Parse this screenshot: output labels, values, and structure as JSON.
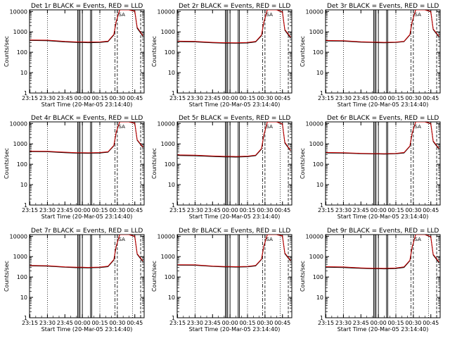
{
  "panel_title_suffix": "BLACK = Events, RED = LLD",
  "x_label": "Start Time (20-Mar-05 23:14:40)",
  "y_label": "Counts/sec",
  "x_tick_labels": [
    "23:15",
    "23:30",
    "23:45",
    "00:00",
    "00:15",
    "00:30",
    "00:45"
  ],
  "y_tick_labels": [
    "1",
    "10",
    "100",
    "1000",
    "10000"
  ],
  "saa_label": "SA",
  "colors": {
    "events": "#000000",
    "lld": "#cc0000",
    "axes": "#000000"
  },
  "chart_data": [
    {
      "type": "line",
      "title": "Det 1r",
      "scale_y": "log",
      "ylim": [
        1,
        12000
      ],
      "xlim": [
        "23:14:40",
        "00:53:00"
      ],
      "series": [
        {
          "name": "Events",
          "x": [
            "23:15",
            "23:30",
            "23:45",
            "23:55",
            "00:00",
            "00:05",
            "00:15",
            "00:22",
            "00:27",
            "00:29",
            "00:32",
            "00:40",
            "00:45",
            "00:47",
            "00:52"
          ],
          "values": [
            380,
            370,
            320,
            300,
            300,
            295,
            300,
            330,
            700,
            3000,
            12000,
            12000,
            10000,
            1500,
            600
          ]
        },
        {
          "name": "LLD",
          "x": [
            "23:15",
            "23:30",
            "23:45",
            "23:55",
            "00:00",
            "00:05",
            "00:15",
            "00:22",
            "00:27",
            "00:29",
            "00:32",
            "00:40",
            "00:45",
            "00:47",
            "00:52"
          ],
          "values": [
            400,
            390,
            340,
            320,
            320,
            315,
            320,
            350,
            750,
            3200,
            12000,
            12000,
            10500,
            1700,
            650
          ]
        }
      ]
    },
    {
      "type": "line",
      "title": "Det 2r",
      "scale_y": "log",
      "ylim": [
        1,
        12000
      ],
      "xlim": [
        "23:14:40",
        "00:53:00"
      ],
      "series": [
        {
          "name": "Events",
          "x": [
            "23:15",
            "23:30",
            "23:45",
            "23:55",
            "00:00",
            "00:05",
            "00:15",
            "00:22",
            "00:27",
            "00:29",
            "00:32",
            "00:40",
            "00:45",
            "00:47",
            "00:52"
          ],
          "values": [
            330,
            320,
            290,
            280,
            280,
            275,
            285,
            320,
            650,
            2800,
            12000,
            12000,
            9000,
            1200,
            500
          ]
        },
        {
          "name": "LLD",
          "x": [
            "23:15",
            "23:30",
            "23:45",
            "23:55",
            "00:00",
            "00:05",
            "00:15",
            "00:22",
            "00:27",
            "00:29",
            "00:32",
            "00:40",
            "00:45",
            "00:47",
            "00:52"
          ],
          "values": [
            350,
            340,
            305,
            295,
            295,
            290,
            300,
            340,
            700,
            3000,
            12000,
            12000,
            9500,
            1300,
            550
          ]
        }
      ]
    },
    {
      "type": "line",
      "title": "Det 3r",
      "scale_y": "log",
      "ylim": [
        1,
        12000
      ],
      "xlim": [
        "23:14:40",
        "00:53:00"
      ],
      "series": [
        {
          "name": "Events",
          "x": [
            "23:15",
            "23:30",
            "23:45",
            "23:55",
            "00:00",
            "00:05",
            "00:15",
            "00:22",
            "00:27",
            "00:29",
            "00:32",
            "00:40",
            "00:45",
            "00:47",
            "00:52"
          ],
          "values": [
            360,
            350,
            310,
            300,
            295,
            290,
            300,
            330,
            700,
            3000,
            12000,
            12000,
            9500,
            1300,
            550
          ]
        },
        {
          "name": "LLD",
          "x": [
            "23:15",
            "23:30",
            "23:45",
            "23:55",
            "00:00",
            "00:05",
            "00:15",
            "00:22",
            "00:27",
            "00:29",
            "00:32",
            "00:40",
            "00:45",
            "00:47",
            "00:52"
          ],
          "values": [
            380,
            370,
            325,
            315,
            310,
            305,
            315,
            345,
            740,
            3200,
            12000,
            12000,
            10000,
            1400,
            600
          ]
        }
      ]
    },
    {
      "type": "line",
      "title": "Det 4r",
      "scale_y": "log",
      "ylim": [
        1,
        12000
      ],
      "xlim": [
        "23:14:40",
        "00:53:00"
      ],
      "series": [
        {
          "name": "Events",
          "x": [
            "23:15",
            "23:30",
            "23:45",
            "23:55",
            "00:00",
            "00:05",
            "00:15",
            "00:22",
            "00:27",
            "00:29",
            "00:32",
            "00:40",
            "00:45",
            "00:47",
            "00:52"
          ],
          "values": [
            420,
            410,
            370,
            350,
            350,
            345,
            355,
            390,
            800,
            3500,
            12000,
            12000,
            10000,
            1500,
            650
          ]
        },
        {
          "name": "LLD",
          "x": [
            "23:15",
            "23:30",
            "23:45",
            "23:55",
            "00:00",
            "00:05",
            "00:15",
            "00:22",
            "00:27",
            "00:29",
            "00:32",
            "00:40",
            "00:45",
            "00:47",
            "00:52"
          ],
          "values": [
            440,
            430,
            390,
            370,
            370,
            365,
            375,
            410,
            850,
            3700,
            12000,
            12000,
            10500,
            1600,
            700
          ]
        }
      ]
    },
    {
      "type": "line",
      "title": "Det 5r",
      "scale_y": "log",
      "ylim": [
        1,
        12000
      ],
      "xlim": [
        "23:14:40",
        "00:53:00"
      ],
      "series": [
        {
          "name": "Events",
          "x": [
            "23:15",
            "23:30",
            "23:45",
            "23:55",
            "00:00",
            "00:05",
            "00:15",
            "00:22",
            "00:27",
            "00:29",
            "00:32",
            "00:40",
            "00:45",
            "00:47",
            "00:52"
          ],
          "values": [
            270,
            260,
            240,
            230,
            230,
            225,
            235,
            265,
            550,
            2500,
            12000,
            12000,
            9000,
            1100,
            450
          ]
        },
        {
          "name": "LLD",
          "x": [
            "23:15",
            "23:30",
            "23:45",
            "23:55",
            "00:00",
            "00:05",
            "00:15",
            "00:22",
            "00:27",
            "00:29",
            "00:32",
            "00:40",
            "00:45",
            "00:47",
            "00:52"
          ],
          "values": [
            290,
            280,
            255,
            245,
            245,
            240,
            250,
            280,
            590,
            2700,
            12000,
            12000,
            9500,
            1200,
            480
          ]
        }
      ]
    },
    {
      "type": "line",
      "title": "Det 6r",
      "scale_y": "log",
      "ylim": [
        1,
        12000
      ],
      "xlim": [
        "23:14:40",
        "00:53:00"
      ],
      "series": [
        {
          "name": "Events",
          "x": [
            "23:15",
            "23:30",
            "23:45",
            "23:55",
            "00:00",
            "00:05",
            "00:15",
            "00:22",
            "00:27",
            "00:29",
            "00:32",
            "00:40",
            "00:45",
            "00:47",
            "00:52"
          ],
          "values": [
            360,
            350,
            330,
            320,
            320,
            315,
            325,
            360,
            750,
            3200,
            12000,
            12000,
            9500,
            1300,
            550
          ]
        },
        {
          "name": "LLD",
          "x": [
            "23:15",
            "23:30",
            "23:45",
            "23:55",
            "00:00",
            "00:05",
            "00:15",
            "00:22",
            "00:27",
            "00:29",
            "00:32",
            "00:40",
            "00:45",
            "00:47",
            "00:52"
          ],
          "values": [
            380,
            370,
            345,
            335,
            335,
            330,
            340,
            380,
            790,
            3400,
            12000,
            12000,
            10000,
            1400,
            600
          ]
        }
      ]
    },
    {
      "type": "line",
      "title": "Det 7r",
      "scale_y": "log",
      "ylim": [
        1,
        12000
      ],
      "xlim": [
        "23:14:40",
        "00:53:00"
      ],
      "series": [
        {
          "name": "Events",
          "x": [
            "23:15",
            "23:30",
            "23:45",
            "23:55",
            "00:00",
            "00:05",
            "00:15",
            "00:22",
            "00:27",
            "00:29",
            "00:32",
            "00:40",
            "00:45",
            "00:47",
            "00:52"
          ],
          "values": [
            350,
            340,
            300,
            285,
            285,
            280,
            290,
            320,
            680,
            3000,
            12000,
            12000,
            9500,
            1300,
            550
          ]
        },
        {
          "name": "LLD",
          "x": [
            "23:15",
            "23:30",
            "23:45",
            "23:55",
            "00:00",
            "00:05",
            "00:15",
            "00:22",
            "00:27",
            "00:29",
            "00:32",
            "00:40",
            "00:45",
            "00:47",
            "00:52"
          ],
          "values": [
            370,
            360,
            315,
            300,
            300,
            295,
            305,
            340,
            720,
            3200,
            12000,
            12000,
            10000,
            1400,
            600
          ]
        }
      ]
    },
    {
      "type": "line",
      "title": "Det 8r",
      "scale_y": "log",
      "ylim": [
        1,
        12000
      ],
      "xlim": [
        "23:14:40",
        "00:53:00"
      ],
      "series": [
        {
          "name": "Events",
          "x": [
            "23:15",
            "23:30",
            "23:45",
            "23:55",
            "00:00",
            "00:05",
            "00:15",
            "00:22",
            "00:27",
            "00:29",
            "00:32",
            "00:40",
            "00:45",
            "00:47",
            "00:52"
          ],
          "values": [
            380,
            375,
            330,
            310,
            310,
            305,
            315,
            350,
            720,
            3100,
            12000,
            12000,
            10000,
            1400,
            600
          ]
        },
        {
          "name": "LLD",
          "x": [
            "23:15",
            "23:30",
            "23:45",
            "23:55",
            "00:00",
            "00:05",
            "00:15",
            "00:22",
            "00:27",
            "00:29",
            "00:32",
            "00:40",
            "00:45",
            "00:47",
            "00:52"
          ],
          "values": [
            400,
            395,
            345,
            325,
            325,
            320,
            330,
            370,
            760,
            3300,
            12000,
            12000,
            10500,
            1500,
            650
          ]
        }
      ]
    },
    {
      "type": "line",
      "title": "Det 9r",
      "scale_y": "log",
      "ylim": [
        1,
        12000
      ],
      "xlim": [
        "23:14:40",
        "00:53:00"
      ],
      "series": [
        {
          "name": "Events",
          "x": [
            "23:15",
            "23:30",
            "23:45",
            "23:55",
            "00:00",
            "00:05",
            "00:15",
            "00:22",
            "00:27",
            "00:29",
            "00:32",
            "00:40",
            "00:45",
            "00:47",
            "00:52"
          ],
          "values": [
            300,
            290,
            265,
            255,
            255,
            250,
            260,
            295,
            620,
            2800,
            12000,
            12000,
            9000,
            1200,
            500
          ]
        },
        {
          "name": "LLD",
          "x": [
            "23:15",
            "23:30",
            "23:45",
            "23:55",
            "00:00",
            "00:05",
            "00:15",
            "00:22",
            "00:27",
            "00:29",
            "00:32",
            "00:40",
            "00:45",
            "00:47",
            "00:52"
          ],
          "values": [
            320,
            310,
            280,
            270,
            270,
            265,
            275,
            315,
            660,
            3000,
            12000,
            12000,
            9500,
            1300,
            550
          ]
        }
      ]
    }
  ]
}
